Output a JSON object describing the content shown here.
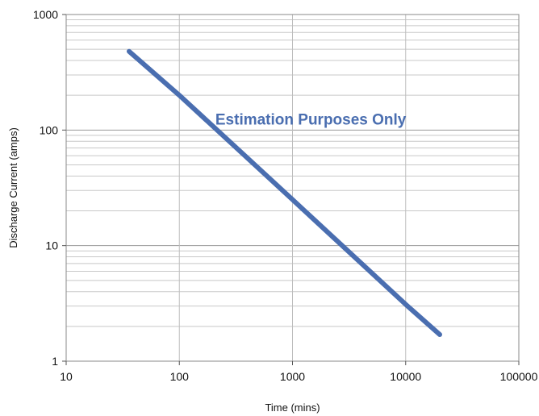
{
  "chart_data": {
    "type": "line",
    "title": "",
    "xlabel": "Time (mins)",
    "ylabel": "Discharge Current (amps)",
    "x_scale": "log",
    "y_scale": "log",
    "xlim": [
      10,
      100000
    ],
    "ylim": [
      1,
      1000
    ],
    "x_ticks": [
      "10",
      "100",
      "1000",
      "10000",
      "100000"
    ],
    "y_ticks": [
      "1",
      "10",
      "100",
      "1000"
    ],
    "grid": true,
    "legend": "none",
    "series": [
      {
        "color": "#4a6eb0",
        "x": [
          36,
          100,
          1000,
          10000,
          20000
        ],
        "y": [
          480,
          200,
          25,
          3.1,
          1.7
        ]
      }
    ],
    "annotations": [
      {
        "text": "Estimation Purposes Only",
        "x": 1450,
        "y": 125,
        "color": "#4a6eb0"
      }
    ]
  }
}
